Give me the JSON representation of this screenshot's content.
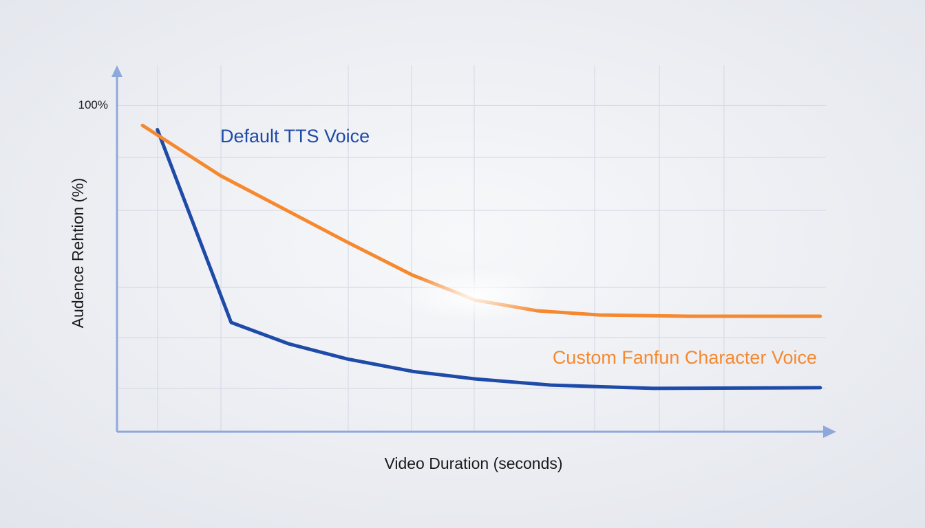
{
  "chart_data": {
    "type": "line",
    "ylabel": "Audence Rehtion (%)",
    "xlabel": "Video Duration (seconds)",
    "xlim": [
      0,
      100
    ],
    "ylim": [
      0,
      110
    ],
    "yticks": [
      {
        "value": 100,
        "label": "100%"
      }
    ],
    "series": [
      {
        "name": "Default TTS Voice",
        "color": "#1e4aa8",
        "x": [
          5.7,
          16.1,
          24.3,
          32.5,
          41.7,
          50.5,
          61.2,
          75.7,
          99.2
        ],
        "values": [
          92.6,
          33.5,
          26.9,
          22.3,
          18.5,
          16.2,
          14.3,
          13.3,
          13.5
        ]
      },
      {
        "name": "Custom Fanfun Character Voice",
        "color": "#f5892f",
        "x": [
          3.6,
          14.6,
          32.5,
          41.7,
          50.5,
          59.2,
          68,
          80.6,
          99.2
        ],
        "values": [
          93.9,
          78.5,
          58.1,
          48.0,
          40.4,
          37.1,
          35.8,
          35.4,
          35.4
        ]
      }
    ]
  }
}
